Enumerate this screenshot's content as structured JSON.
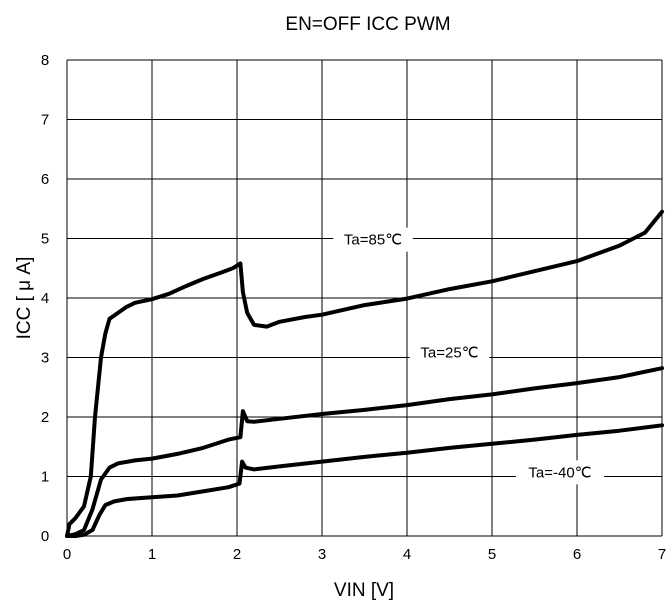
{
  "chart_data": {
    "type": "line",
    "title": "EN=OFF ICC PWM",
    "xlabel": "VIN [V]",
    "ylabel": "ICC [ μ A]",
    "xlim": [
      0,
      7
    ],
    "ylim": [
      0,
      8
    ],
    "x_ticks": [
      "0",
      "1",
      "2",
      "3",
      "4",
      "5",
      "6",
      "7"
    ],
    "y_ticks": [
      "0",
      "1",
      "2",
      "3",
      "4",
      "5",
      "6",
      "7",
      "8"
    ],
    "grid": true,
    "series": [
      {
        "name": "Ta=85℃",
        "points": [
          [
            0,
            0
          ],
          [
            0.03,
            0.2
          ],
          [
            0.1,
            0.3
          ],
          [
            0.2,
            0.5
          ],
          [
            0.28,
            1.0
          ],
          [
            0.33,
            2.0
          ],
          [
            0.4,
            3.0
          ],
          [
            0.45,
            3.4
          ],
          [
            0.5,
            3.65
          ],
          [
            0.6,
            3.75
          ],
          [
            0.7,
            3.85
          ],
          [
            0.8,
            3.92
          ],
          [
            1.0,
            3.98
          ],
          [
            1.2,
            4.07
          ],
          [
            1.4,
            4.2
          ],
          [
            1.6,
            4.32
          ],
          [
            1.8,
            4.42
          ],
          [
            1.95,
            4.5
          ],
          [
            2.04,
            4.58
          ],
          [
            2.07,
            4.1
          ],
          [
            2.12,
            3.75
          ],
          [
            2.2,
            3.55
          ],
          [
            2.35,
            3.52
          ],
          [
            2.5,
            3.6
          ],
          [
            2.8,
            3.68
          ],
          [
            3.0,
            3.72
          ],
          [
            3.5,
            3.88
          ],
          [
            4.0,
            3.99
          ],
          [
            4.5,
            4.15
          ],
          [
            5.0,
            4.28
          ],
          [
            5.5,
            4.45
          ],
          [
            6.0,
            4.62
          ],
          [
            6.5,
            4.88
          ],
          [
            6.8,
            5.1
          ],
          [
            7.0,
            5.45
          ]
        ]
      },
      {
        "name": "Ta=25℃",
        "points": [
          [
            0,
            0
          ],
          [
            0.1,
            0.03
          ],
          [
            0.2,
            0.1
          ],
          [
            0.3,
            0.45
          ],
          [
            0.4,
            0.95
          ],
          [
            0.5,
            1.15
          ],
          [
            0.6,
            1.22
          ],
          [
            0.8,
            1.27
          ],
          [
            1.0,
            1.3
          ],
          [
            1.3,
            1.38
          ],
          [
            1.6,
            1.48
          ],
          [
            1.9,
            1.62
          ],
          [
            2.04,
            1.66
          ],
          [
            2.07,
            2.1
          ],
          [
            2.12,
            1.93
          ],
          [
            2.2,
            1.92
          ],
          [
            2.5,
            1.97
          ],
          [
            3.0,
            2.05
          ],
          [
            3.5,
            2.12
          ],
          [
            4.0,
            2.2
          ],
          [
            4.5,
            2.3
          ],
          [
            5.0,
            2.38
          ],
          [
            5.5,
            2.48
          ],
          [
            6.0,
            2.57
          ],
          [
            6.5,
            2.67
          ],
          [
            7.0,
            2.82
          ]
        ]
      },
      {
        "name": "Ta=-40℃",
        "points": [
          [
            0,
            0
          ],
          [
            0.1,
            0.0
          ],
          [
            0.2,
            0.02
          ],
          [
            0.3,
            0.1
          ],
          [
            0.38,
            0.35
          ],
          [
            0.45,
            0.52
          ],
          [
            0.55,
            0.58
          ],
          [
            0.7,
            0.62
          ],
          [
            1.0,
            0.65
          ],
          [
            1.3,
            0.68
          ],
          [
            1.6,
            0.75
          ],
          [
            1.9,
            0.82
          ],
          [
            2.03,
            0.88
          ],
          [
            2.06,
            1.25
          ],
          [
            2.1,
            1.15
          ],
          [
            2.2,
            1.12
          ],
          [
            2.5,
            1.17
          ],
          [
            3.0,
            1.25
          ],
          [
            3.5,
            1.33
          ],
          [
            4.0,
            1.4
          ],
          [
            4.5,
            1.48
          ],
          [
            5.0,
            1.55
          ],
          [
            5.5,
            1.62
          ],
          [
            6.0,
            1.7
          ],
          [
            6.5,
            1.77
          ],
          [
            7.0,
            1.86
          ]
        ]
      }
    ],
    "annotations": [
      {
        "text": "Ta=85℃",
        "x": 3.6,
        "y": 4.98
      },
      {
        "text": "Ta=25℃",
        "x": 4.5,
        "y": 3.08
      },
      {
        "text": "Ta=-40℃",
        "x": 5.8,
        "y": 1.07
      }
    ]
  }
}
